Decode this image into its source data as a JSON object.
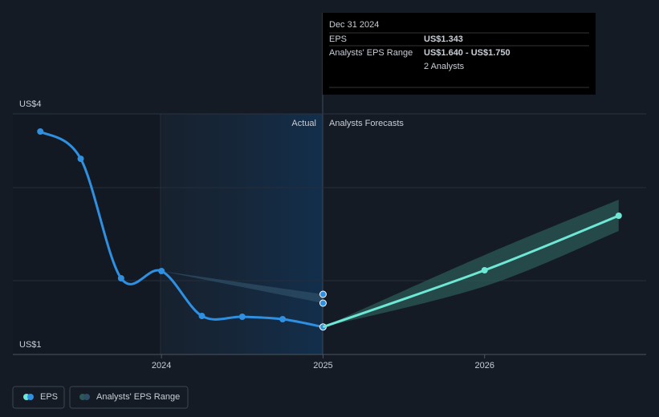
{
  "chart_data": {
    "type": "line",
    "xlim": [
      2023.08,
      2027.0
    ],
    "xticks": [
      2024,
      2025,
      2026
    ],
    "ylim": [
      1,
      4
    ],
    "yticks": [
      {
        "value": 4,
        "label": "US$4"
      },
      {
        "value": 1,
        "label": "US$1"
      }
    ],
    "actual_label": "Actual",
    "forecast_label": "Analysts Forecasts",
    "tooltip": {
      "title": "Dec 31 2024",
      "rows": [
        {
          "label": "EPS",
          "value": "US$1.343"
        },
        {
          "label": "Analysts' EPS Range",
          "value": "US$1.640 - US$1.750"
        }
      ],
      "analysts": "2 Analysts"
    },
    "series": [
      {
        "name": "EPS",
        "color": "#2f8fe0",
        "x": [
          2023.25,
          2023.5,
          2023.75,
          2024.0,
          2024.25,
          2024.5,
          2024.75,
          2025.0
        ],
        "values": [
          3.78,
          3.44,
          1.95,
          2.04,
          1.48,
          1.47,
          1.44,
          1.343
        ]
      },
      {
        "name": "EPS",
        "color": "#6ee7d5",
        "x": [
          2025.0,
          2026.0,
          2026.83
        ],
        "values": [
          1.343,
          2.05,
          2.73
        ]
      }
    ],
    "ranges": [
      {
        "name": "Analysts' EPS Range",
        "color": "#2d4d66",
        "x": [
          2024.0,
          2025.0
        ],
        "lower": [
          2.04,
          1.64
        ],
        "upper": [
          2.04,
          1.75
        ]
      },
      {
        "name": "Analysts' EPS Range",
        "color": "#2b5a55",
        "x": [
          2025.0,
          2026.0,
          2026.83
        ],
        "lower": [
          1.343,
          1.85,
          2.54
        ],
        "upper": [
          1.343,
          2.24,
          2.93
        ]
      }
    ]
  }
}
